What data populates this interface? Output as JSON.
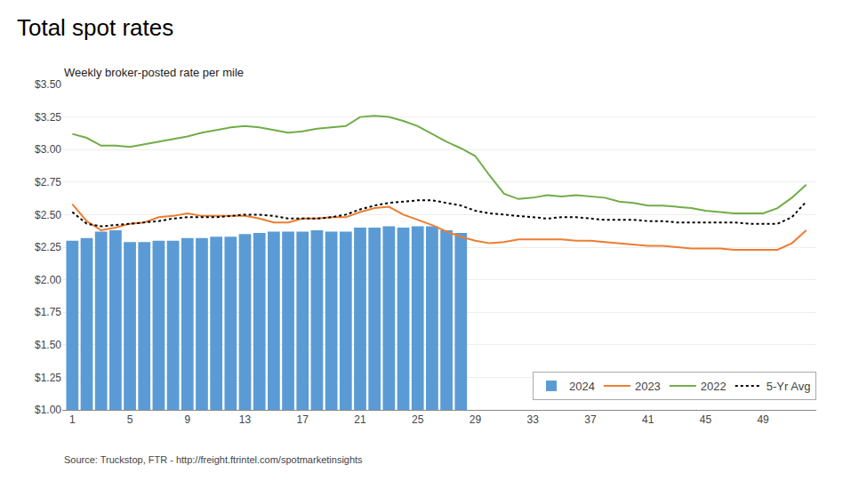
{
  "chart_data": {
    "type": "bar",
    "title": "Total spot rates",
    "subtitle": "Weekly broker-posted rate per mile",
    "annotations": [
      "Source: Truckstop, FTR - http://freight.ftrintel.com/spotmarketinsights"
    ],
    "x": [
      1,
      2,
      3,
      4,
      5,
      6,
      7,
      8,
      9,
      10,
      11,
      12,
      13,
      14,
      15,
      16,
      17,
      18,
      19,
      20,
      21,
      22,
      23,
      24,
      25,
      26,
      27,
      28,
      29,
      30,
      31,
      32,
      33,
      34,
      35,
      36,
      37,
      38,
      39,
      40,
      41,
      42,
      43,
      44,
      45,
      46,
      47,
      48,
      49,
      50,
      51,
      52
    ],
    "series": [
      {
        "name": "2024",
        "type": "bar",
        "color": "#5B9BD5",
        "values": [
          2.3,
          2.32,
          2.37,
          2.38,
          2.29,
          2.29,
          2.3,
          2.3,
          2.32,
          2.32,
          2.33,
          2.33,
          2.35,
          2.36,
          2.37,
          2.37,
          2.37,
          2.38,
          2.37,
          2.37,
          2.4,
          2.4,
          2.41,
          2.4,
          2.41,
          2.41,
          2.38,
          2.36,
          null,
          null,
          null,
          null,
          null,
          null,
          null,
          null,
          null,
          null,
          null,
          null,
          null,
          null,
          null,
          null,
          null,
          null,
          null,
          null,
          null,
          null,
          null,
          null
        ]
      },
      {
        "name": "2023",
        "type": "line",
        "line_style": "solid",
        "color": "#ED7D31",
        "values": [
          2.58,
          2.45,
          2.38,
          2.4,
          2.43,
          2.44,
          2.48,
          2.49,
          2.51,
          2.49,
          2.49,
          2.49,
          2.49,
          2.47,
          2.44,
          2.44,
          2.47,
          2.47,
          2.48,
          2.48,
          2.52,
          2.55,
          2.56,
          2.5,
          2.46,
          2.42,
          2.37,
          2.33,
          2.3,
          2.28,
          2.29,
          2.31,
          2.31,
          2.31,
          2.31,
          2.3,
          2.3,
          2.29,
          2.28,
          2.27,
          2.26,
          2.26,
          2.25,
          2.24,
          2.24,
          2.24,
          2.23,
          2.23,
          2.23,
          2.23,
          2.28,
          2.38
        ]
      },
      {
        "name": "2022",
        "type": "line",
        "line_style": "solid",
        "color": "#70AD47",
        "values": [
          3.12,
          3.09,
          3.03,
          3.03,
          3.02,
          3.04,
          3.06,
          3.08,
          3.1,
          3.13,
          3.15,
          3.17,
          3.18,
          3.17,
          3.15,
          3.13,
          3.14,
          3.16,
          3.17,
          3.18,
          3.25,
          3.26,
          3.25,
          3.22,
          3.18,
          3.12,
          3.06,
          3.01,
          2.95,
          2.8,
          2.66,
          2.62,
          2.63,
          2.65,
          2.64,
          2.65,
          2.64,
          2.63,
          2.6,
          2.59,
          2.57,
          2.57,
          2.56,
          2.55,
          2.53,
          2.52,
          2.51,
          2.51,
          2.51,
          2.55,
          2.63,
          2.73
        ]
      },
      {
        "name": "5-Yr Avg",
        "type": "line",
        "line_style": "dotted",
        "color": "#000000",
        "values": [
          2.52,
          2.43,
          2.41,
          2.42,
          2.43,
          2.44,
          2.45,
          2.47,
          2.48,
          2.48,
          2.48,
          2.49,
          2.5,
          2.5,
          2.49,
          2.47,
          2.47,
          2.47,
          2.48,
          2.5,
          2.54,
          2.57,
          2.59,
          2.6,
          2.61,
          2.61,
          2.59,
          2.57,
          2.53,
          2.51,
          2.5,
          2.49,
          2.48,
          2.47,
          2.48,
          2.48,
          2.47,
          2.46,
          2.46,
          2.46,
          2.45,
          2.45,
          2.44,
          2.44,
          2.44,
          2.44,
          2.44,
          2.43,
          2.43,
          2.43,
          2.48,
          2.6
        ]
      }
    ],
    "xlim": [
      0.3,
      52.7
    ],
    "xticks": [
      1,
      5,
      9,
      13,
      17,
      21,
      25,
      29,
      33,
      37,
      41,
      45,
      49
    ],
    "ylim": [
      1.0,
      3.5
    ],
    "yticks": [
      {
        "value": 1.0,
        "label": "$1.00"
      },
      {
        "value": 1.25,
        "label": "$1.25"
      },
      {
        "value": 1.5,
        "label": "$1.50"
      },
      {
        "value": 1.75,
        "label": "$1.75"
      },
      {
        "value": 2.0,
        "label": "$2.00"
      },
      {
        "value": 2.25,
        "label": "$2.25"
      },
      {
        "value": 2.5,
        "label": "$2.50"
      },
      {
        "value": 2.75,
        "label": "$2.75"
      },
      {
        "value": 3.0,
        "label": "$3.00"
      },
      {
        "value": 3.25,
        "label": "$3.25"
      },
      {
        "value": 3.5,
        "label": "$3.50"
      }
    ],
    "grid": true,
    "legend": "lower right"
  }
}
